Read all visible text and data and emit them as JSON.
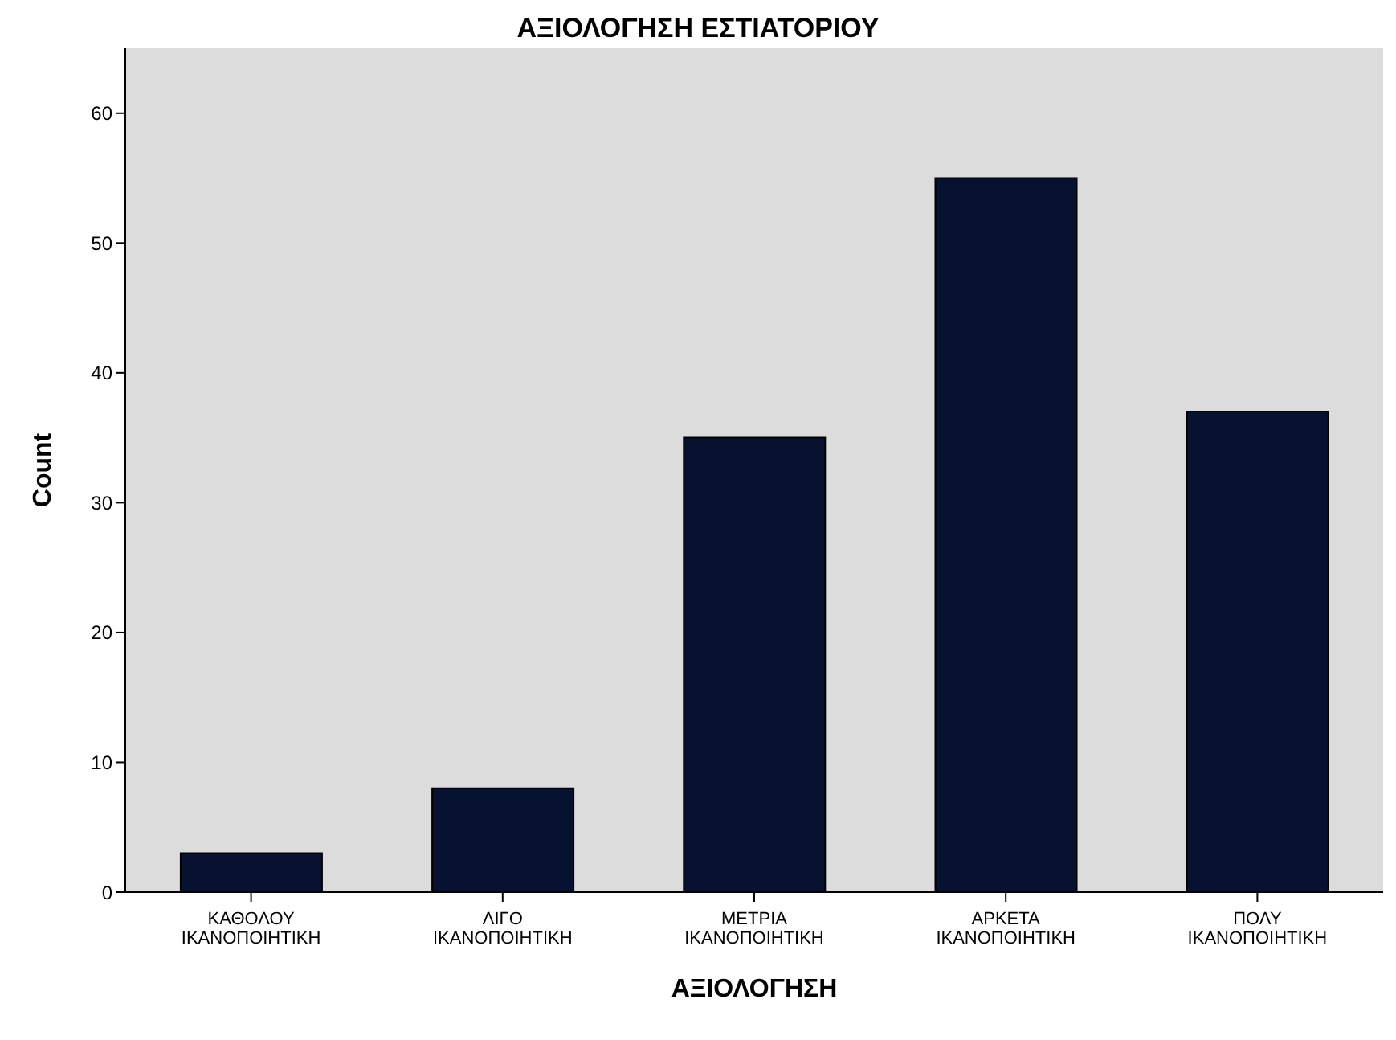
{
  "chart_data": {
    "type": "bar",
    "title": "ΑΞΙΟΛΟΓΗΣΗ ΕΣΤΙΑΤΟΡΙΟΥ",
    "xlabel": "ΑΞΙΟΛΟΓΗΣΗ",
    "ylabel": "Count",
    "categories": [
      "ΚΑΘΟΛΟΥ ΙΚΑΝΟΠΟΙΗΤΙΚΗ",
      "ΛΙΓΟ ΙΚΑΝΟΠΟΙΗΤΙΚΗ",
      "ΜΕΤΡΙΑ ΙΚΑΝΟΠΟΙΗΤΙΚΗ",
      "ΑΡΚΕΤΑ ΙΚΑΝΟΠΟΙΗΤΙΚΗ",
      "ΠΟΛΥ ΙΚΑΝΟΠΟΙΗΤΙΚΗ"
    ],
    "values": [
      3,
      8,
      35,
      55,
      37
    ],
    "color": "#061230",
    "ylim": [
      0,
      65
    ],
    "yticks": [
      0,
      10,
      20,
      30,
      40,
      50,
      60
    ],
    "grid": false
  }
}
